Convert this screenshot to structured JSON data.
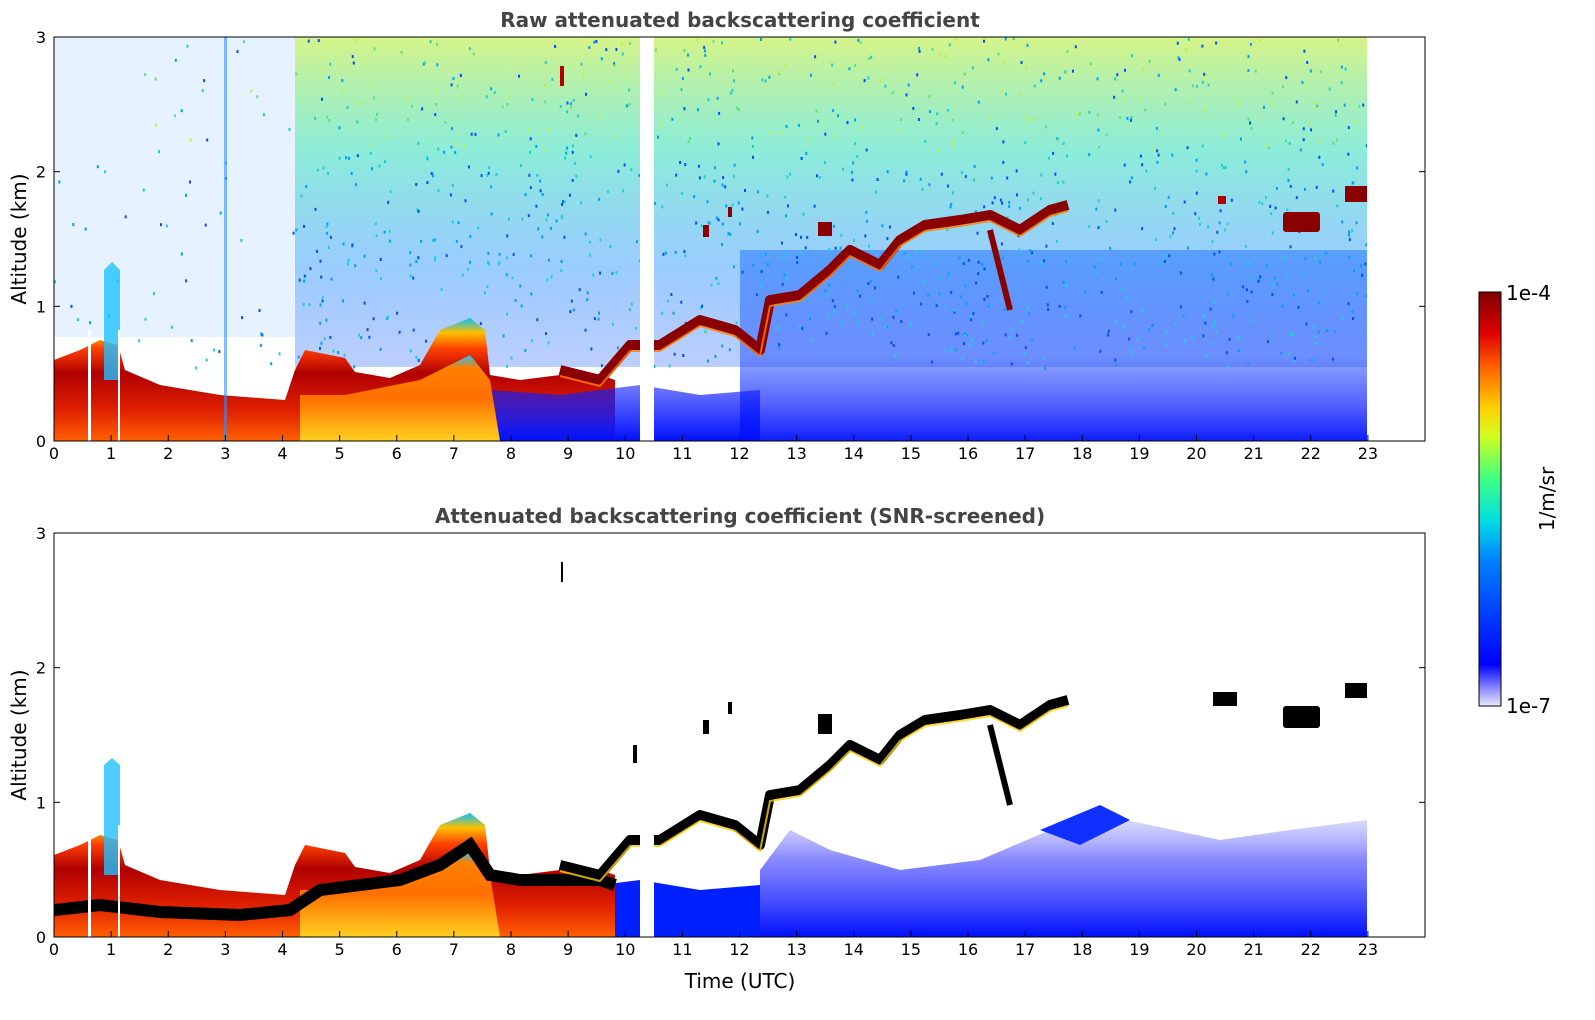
{
  "chart_data": [
    {
      "type": "heatmap",
      "title": "Raw attenuated backscattering coefficient",
      "xlabel": "",
      "ylabel": "Altitude (km)",
      "xlim": [
        0,
        24
      ],
      "ylim": [
        0,
        3
      ],
      "x_ticks": [
        "0",
        "1",
        "2",
        "3",
        "4",
        "5",
        "6",
        "7",
        "8",
        "9",
        "10",
        "11",
        "12",
        "13",
        "14",
        "15",
        "16",
        "17",
        "18",
        "19",
        "20",
        "21",
        "22",
        "23"
      ],
      "y_ticks": [
        "0",
        "1",
        "2",
        "3"
      ],
      "boundary_layer_top_km": [
        {
          "t": 0,
          "z": 0.6
        },
        {
          "t": 1,
          "z": 0.5
        },
        {
          "t": 1.5,
          "z": 0.45
        },
        {
          "t": 2,
          "z": 0.4
        },
        {
          "t": 3,
          "z": 0.35
        },
        {
          "t": 4,
          "z": 0.35
        },
        {
          "t": 4.5,
          "z": 0.6
        },
        {
          "t": 5,
          "z": 0.55
        },
        {
          "t": 6,
          "z": 0.5
        },
        {
          "t": 7,
          "z": 0.85
        },
        {
          "t": 7.5,
          "z": 0.55
        },
        {
          "t": 8,
          "z": 0.45
        },
        {
          "t": 9,
          "z": 0.5
        },
        {
          "t": 10,
          "z": 0.5
        }
      ],
      "cloud_layer_km": [
        {
          "t": 10,
          "z": 0.65
        },
        {
          "t": 11,
          "z": 0.8
        },
        {
          "t": 12,
          "z": 0.65
        },
        {
          "t": 12.5,
          "z": 1.1
        },
        {
          "t": 13,
          "z": 1.1
        },
        {
          "t": 13.5,
          "z": 1.3
        },
        {
          "t": 14,
          "z": 1.35
        },
        {
          "t": 14.5,
          "z": 1.05
        },
        {
          "t": 15,
          "z": 1.5
        },
        {
          "t": 16,
          "z": 1.6
        },
        {
          "t": 16.5,
          "z": 1.55
        },
        {
          "t": 17,
          "z": 1.55
        },
        {
          "t": 17.7,
          "z": 1.7
        }
      ],
      "isolated_clouds_km": [
        {
          "t": 13.5,
          "z": 1.55
        },
        {
          "t": 11.4,
          "z": 1.55
        },
        {
          "t": 11.8,
          "z": 1.72
        },
        {
          "t": 20.5,
          "z": 1.78
        },
        {
          "t": 21.8,
          "z": 1.62
        },
        {
          "t": 22.8,
          "z": 1.83
        }
      ]
    },
    {
      "type": "heatmap",
      "title": "Attenuated backscattering coefficient (SNR-screened)",
      "xlabel": "Time (UTC)",
      "ylabel": "Altitude (km)",
      "xlim": [
        0,
        24
      ],
      "ylim": [
        0,
        3
      ],
      "x_ticks": [
        "0",
        "1",
        "2",
        "3",
        "4",
        "5",
        "6",
        "7",
        "8",
        "9",
        "10",
        "11",
        "12",
        "13",
        "14",
        "15",
        "16",
        "17",
        "18",
        "19",
        "20",
        "21",
        "22",
        "23"
      ],
      "y_ticks": [
        "0",
        "1",
        "2",
        "3"
      ]
    }
  ],
  "colorbar": {
    "label": "1/m/sr",
    "max_label": "1e-4",
    "min_label": "1e-7",
    "scale": "log",
    "colors": [
      "#e8e8ff",
      "#0000ff",
      "#0080ff",
      "#00e0e0",
      "#40ff80",
      "#d0ff20",
      "#ffd000",
      "#ff6000",
      "#e00000",
      "#7f0000"
    ]
  }
}
